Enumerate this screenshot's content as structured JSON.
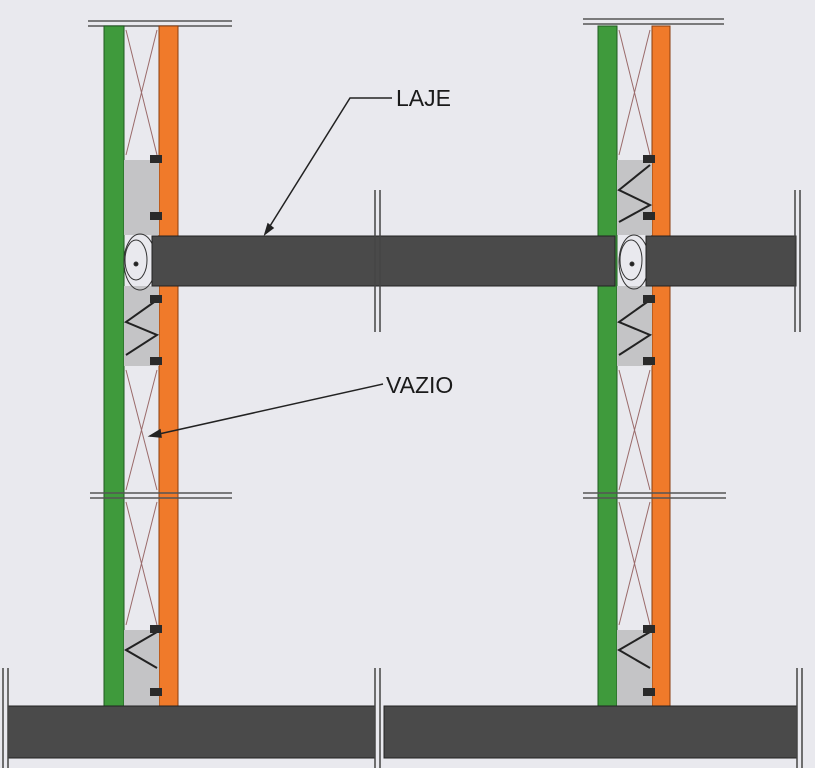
{
  "labels": {
    "slab": "LAJE",
    "void": "VAZIO"
  },
  "colors": {
    "background": "#e9e9ee",
    "inner_leaf": "#3f9a3c",
    "outer_leaf": "#f07a2a",
    "slab": "#4a4a4a",
    "infill": "#c4c4c6",
    "leader": "#222222",
    "bracket": "#c0392b"
  }
}
